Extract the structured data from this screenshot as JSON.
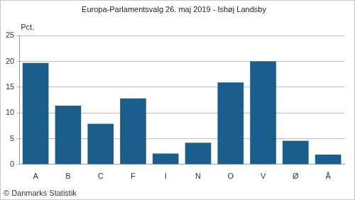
{
  "chart_data": {
    "type": "bar",
    "title": "Europa-Parlamentsvalg 26. maj 2019 - Ishøj Landsby",
    "ylabel": "Pct.",
    "source": "© Danmarks Statistik",
    "categories": [
      "A",
      "B",
      "C",
      "F",
      "I",
      "N",
      "O",
      "V",
      "Ø",
      "Å"
    ],
    "values": [
      19.7,
      11.4,
      7.9,
      12.8,
      2.1,
      4.2,
      15.9,
      20.0,
      4.6,
      1.9
    ],
    "color": "#1b5e8c",
    "ylim": [
      0,
      25
    ],
    "yticks": [
      0,
      5,
      10,
      15,
      20,
      25
    ],
    "grid": true
  }
}
